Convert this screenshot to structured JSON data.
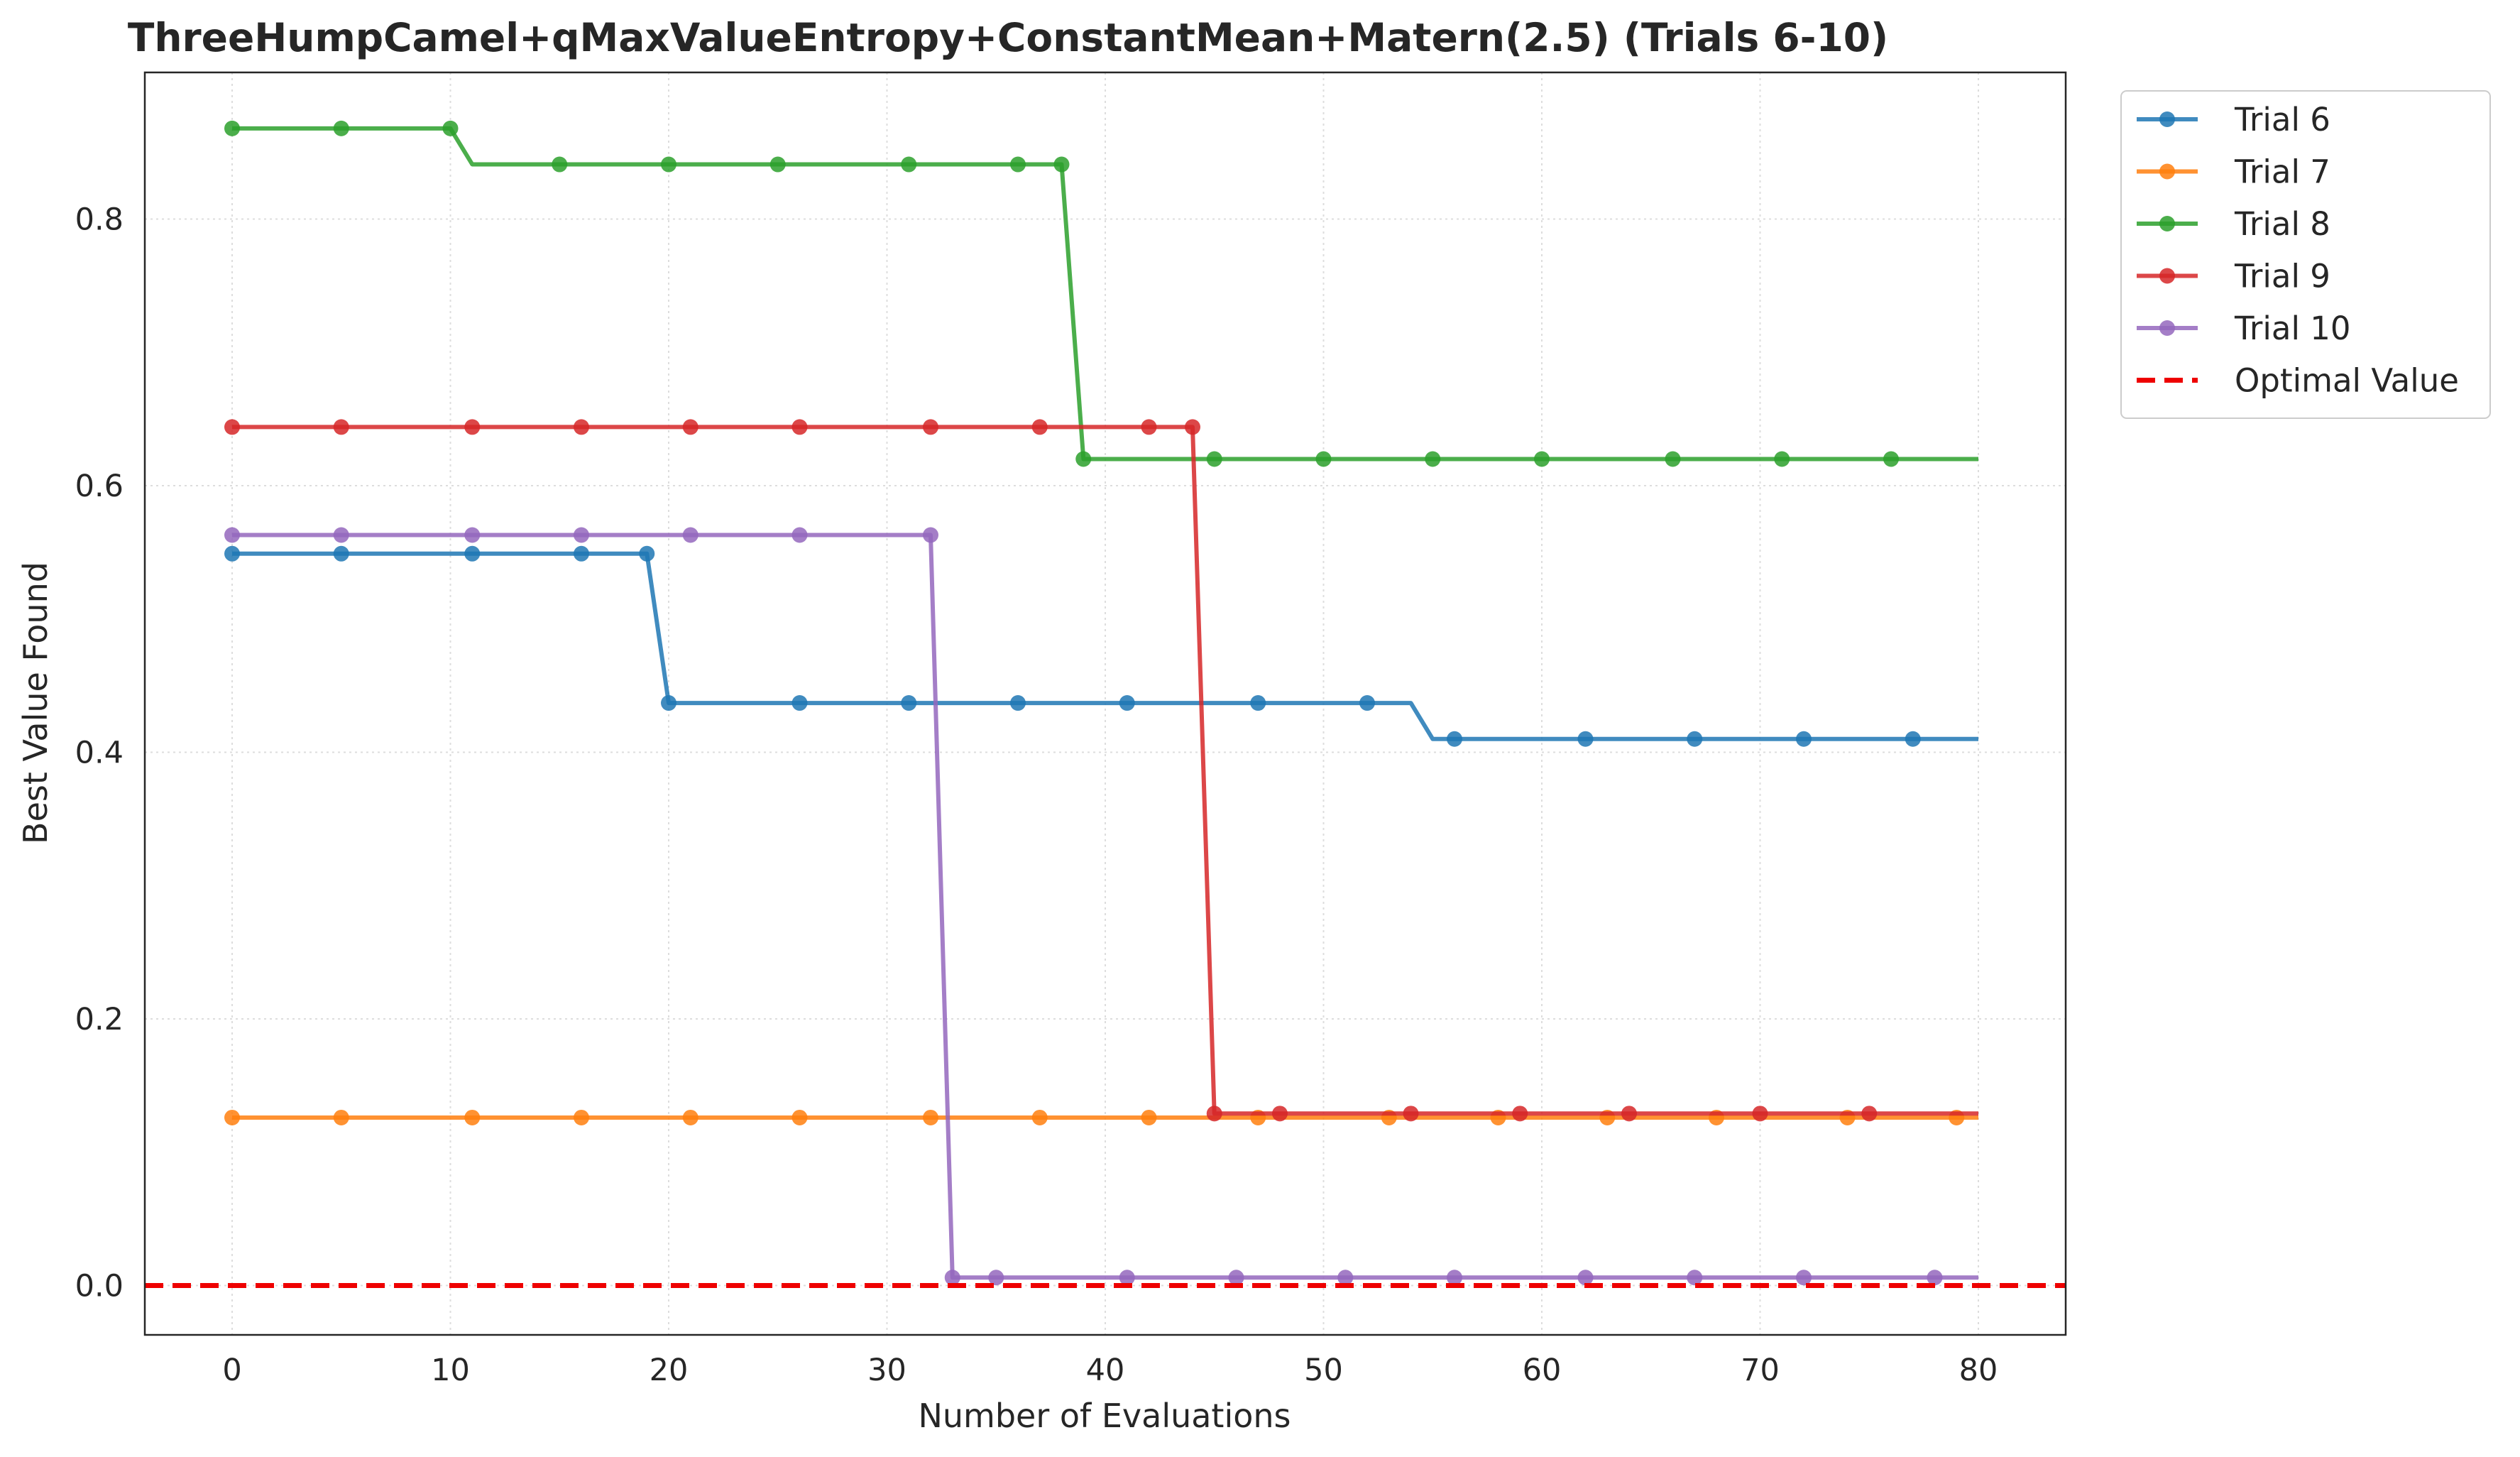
{
  "chart_data": {
    "type": "line",
    "title": "ThreeHumpCamel+qMaxValueEntropy+ConstantMean+Matern(2.5) (Trials 6-10)",
    "xlabel": "Number of Evaluations",
    "ylabel": "Best Value Found",
    "xlim": [
      -4,
      84
    ],
    "ylim": [
      -0.037,
      0.91
    ],
    "xticks": [
      0,
      10,
      20,
      30,
      40,
      50,
      60,
      70,
      80
    ],
    "yticks": [
      0.0,
      0.2,
      0.4,
      0.6,
      0.8
    ],
    "xtick_labels": [
      "0",
      "10",
      "20",
      "30",
      "40",
      "50",
      "60",
      "70",
      "80"
    ],
    "ytick_labels": [
      "0.0",
      "0.2",
      "0.4",
      "0.6",
      "0.8"
    ],
    "grid": true,
    "legend_position": "outside top-right",
    "series": [
      {
        "name": "Trial 6",
        "color": "#1f77b4",
        "line": [
          [
            0,
            0.549
          ],
          [
            19,
            0.549
          ],
          [
            20,
            0.437
          ],
          [
            54,
            0.437
          ],
          [
            55,
            0.41
          ],
          [
            80,
            0.41
          ]
        ],
        "markers": [
          [
            0,
            0.549
          ],
          [
            5,
            0.549
          ],
          [
            11,
            0.549
          ],
          [
            16,
            0.549
          ],
          [
            19,
            0.549
          ],
          [
            20,
            0.437
          ],
          [
            26,
            0.437
          ],
          [
            31,
            0.437
          ],
          [
            36,
            0.437
          ],
          [
            41,
            0.437
          ],
          [
            47,
            0.437
          ],
          [
            52,
            0.437
          ],
          [
            56,
            0.41
          ],
          [
            62,
            0.41
          ],
          [
            67,
            0.41
          ],
          [
            72,
            0.41
          ],
          [
            77,
            0.41
          ]
        ]
      },
      {
        "name": "Trial 7",
        "color": "#ff7f0e",
        "line": [
          [
            0,
            0.126
          ],
          [
            80,
            0.126
          ]
        ],
        "markers": [
          [
            0,
            0.126
          ],
          [
            5,
            0.126
          ],
          [
            11,
            0.126
          ],
          [
            16,
            0.126
          ],
          [
            21,
            0.126
          ],
          [
            26,
            0.126
          ],
          [
            32,
            0.126
          ],
          [
            37,
            0.126
          ],
          [
            42,
            0.126
          ],
          [
            47,
            0.126
          ],
          [
            53,
            0.126
          ],
          [
            58,
            0.126
          ],
          [
            63,
            0.126
          ],
          [
            68,
            0.126
          ],
          [
            74,
            0.126
          ],
          [
            79,
            0.126
          ]
        ]
      },
      {
        "name": "Trial 8",
        "color": "#2ca02c",
        "line": [
          [
            0,
            0.868
          ],
          [
            10,
            0.868
          ],
          [
            11,
            0.841
          ],
          [
            38,
            0.841
          ],
          [
            39,
            0.62
          ],
          [
            80,
            0.62
          ]
        ],
        "markers": [
          [
            0,
            0.868
          ],
          [
            5,
            0.868
          ],
          [
            10,
            0.868
          ],
          [
            15,
            0.841
          ],
          [
            20,
            0.841
          ],
          [
            25,
            0.841
          ],
          [
            31,
            0.841
          ],
          [
            36,
            0.841
          ],
          [
            38,
            0.841
          ],
          [
            39,
            0.62
          ],
          [
            45,
            0.62
          ],
          [
            50,
            0.62
          ],
          [
            55,
            0.62
          ],
          [
            60,
            0.62
          ],
          [
            66,
            0.62
          ],
          [
            71,
            0.62
          ],
          [
            76,
            0.62
          ]
        ]
      },
      {
        "name": "Trial 9",
        "color": "#d62728",
        "line": [
          [
            0,
            0.644
          ],
          [
            44,
            0.644
          ],
          [
            45,
            0.129
          ],
          [
            80,
            0.129
          ]
        ],
        "markers": [
          [
            0,
            0.644
          ],
          [
            5,
            0.644
          ],
          [
            11,
            0.644
          ],
          [
            16,
            0.644
          ],
          [
            21,
            0.644
          ],
          [
            26,
            0.644
          ],
          [
            32,
            0.644
          ],
          [
            37,
            0.644
          ],
          [
            42,
            0.644
          ],
          [
            44,
            0.644
          ],
          [
            45,
            0.129
          ],
          [
            48,
            0.129
          ],
          [
            54,
            0.129
          ],
          [
            59,
            0.129
          ],
          [
            64,
            0.129
          ],
          [
            70,
            0.129
          ],
          [
            75,
            0.129
          ]
        ]
      },
      {
        "name": "Trial 10",
        "color": "#9467bd",
        "line": [
          [
            0,
            0.563
          ],
          [
            32,
            0.563
          ],
          [
            33,
            0.006
          ],
          [
            80,
            0.006
          ]
        ],
        "markers": [
          [
            0,
            0.563
          ],
          [
            5,
            0.563
          ],
          [
            11,
            0.563
          ],
          [
            16,
            0.563
          ],
          [
            21,
            0.563
          ],
          [
            26,
            0.563
          ],
          [
            32,
            0.563
          ],
          [
            33,
            0.006
          ],
          [
            35,
            0.006
          ],
          [
            41,
            0.006
          ],
          [
            46,
            0.006
          ],
          [
            51,
            0.006
          ],
          [
            56,
            0.006
          ],
          [
            62,
            0.006
          ],
          [
            67,
            0.006
          ],
          [
            72,
            0.006
          ],
          [
            78,
            0.006
          ]
        ]
      }
    ],
    "reference_lines": [
      {
        "name": "Optimal Value",
        "y": 0.0,
        "color": "#ee0000",
        "style": "dashed"
      }
    ]
  }
}
